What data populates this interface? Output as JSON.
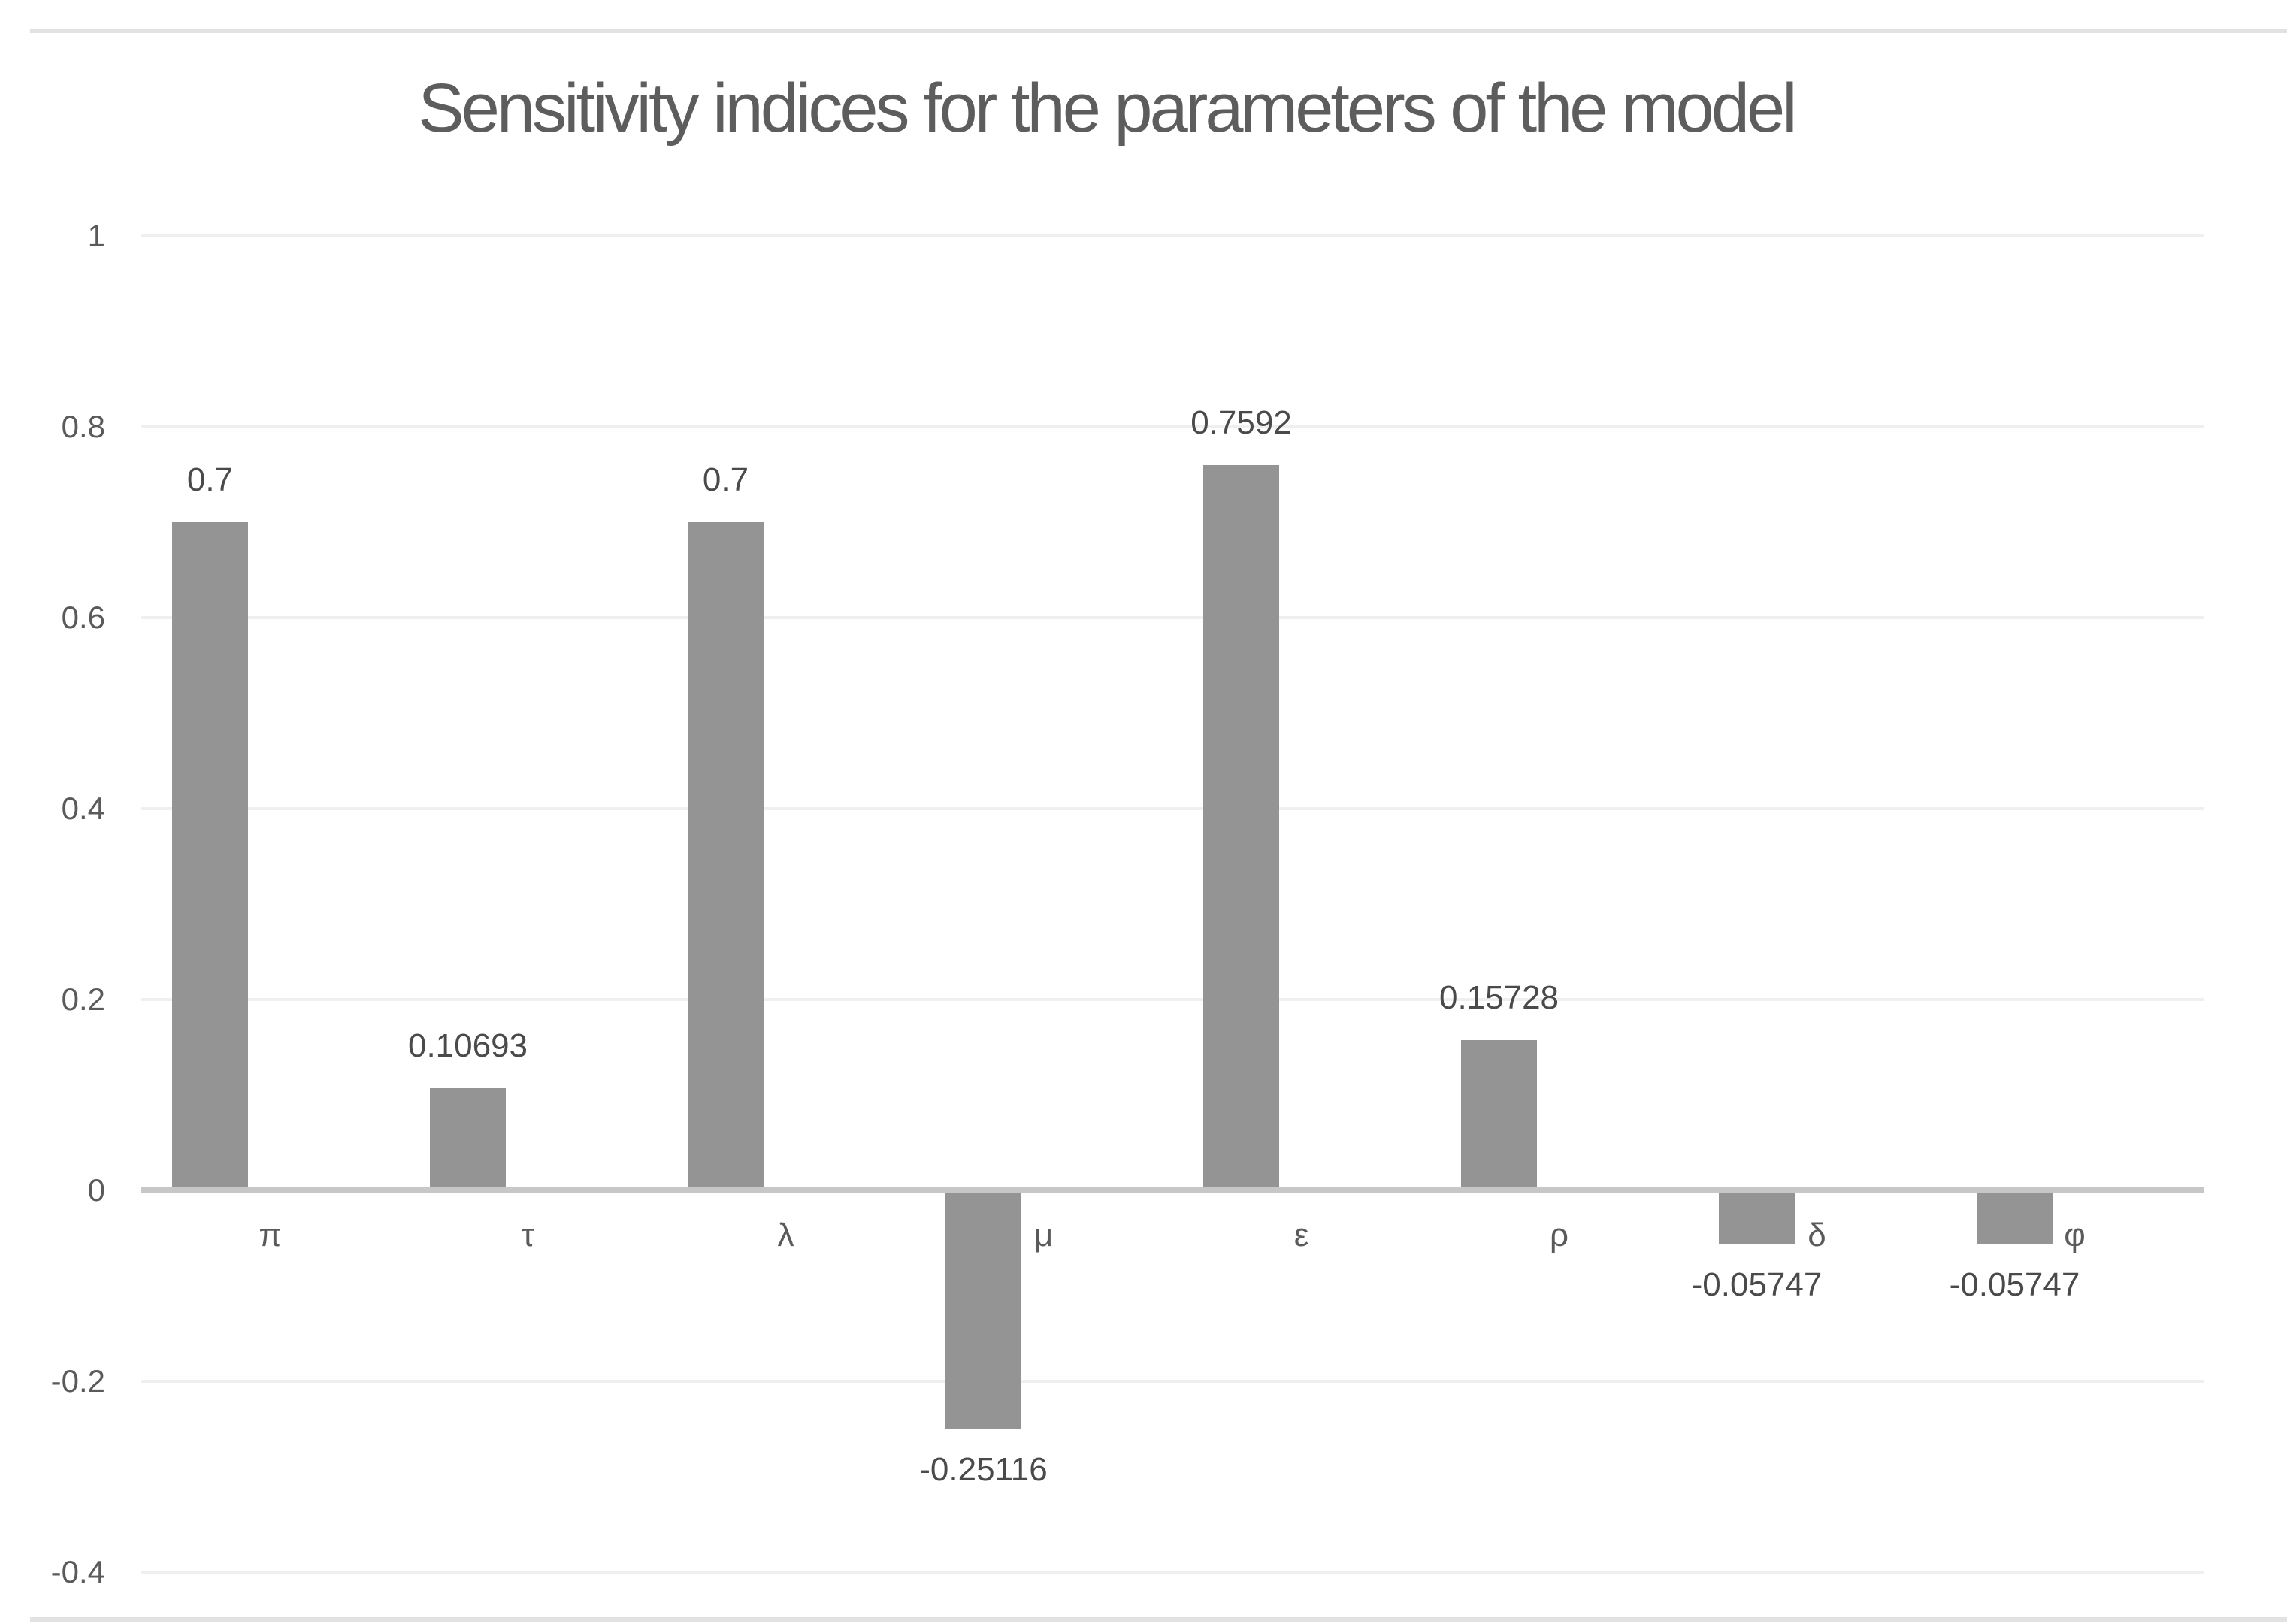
{
  "title": "Sensitivity indices for the parameters of the model",
  "chart_data": {
    "type": "bar",
    "title": "Sensitivity indices for the parameters of the model",
    "categories": [
      "π",
      "τ",
      "λ",
      "μ",
      "ε",
      "ρ",
      "δ",
      "φ"
    ],
    "values": [
      0.7,
      0.10693,
      0.7,
      -0.25116,
      0.7592,
      0.15728,
      -0.05747,
      -0.05747
    ],
    "data_labels": [
      "0.7",
      "0.10693",
      "0.7",
      "-0.25116",
      "0.7592",
      "0.15728",
      "-0.05747",
      "-0.05747"
    ],
    "xlabel": "",
    "ylabel": "",
    "ylim": [
      -0.4,
      1
    ],
    "y_ticks": [
      1,
      0.8,
      0.6,
      0.4,
      0.2,
      0,
      -0.2,
      -0.4
    ],
    "y_tick_labels": [
      "1",
      "0.8",
      "0.6",
      "0.4",
      "0.2",
      "0",
      "-0.2",
      "-0.4"
    ],
    "grid": true,
    "legend": false,
    "bar_color": "#949494",
    "axis_line_color": "#c7c7c7",
    "gridline_color": "#efefef",
    "tick_label_color": "#5a5a5a",
    "data_label_color": "#4a4a4a",
    "title_color": "#5d5d5d",
    "border_color": "#e2e2e2"
  }
}
